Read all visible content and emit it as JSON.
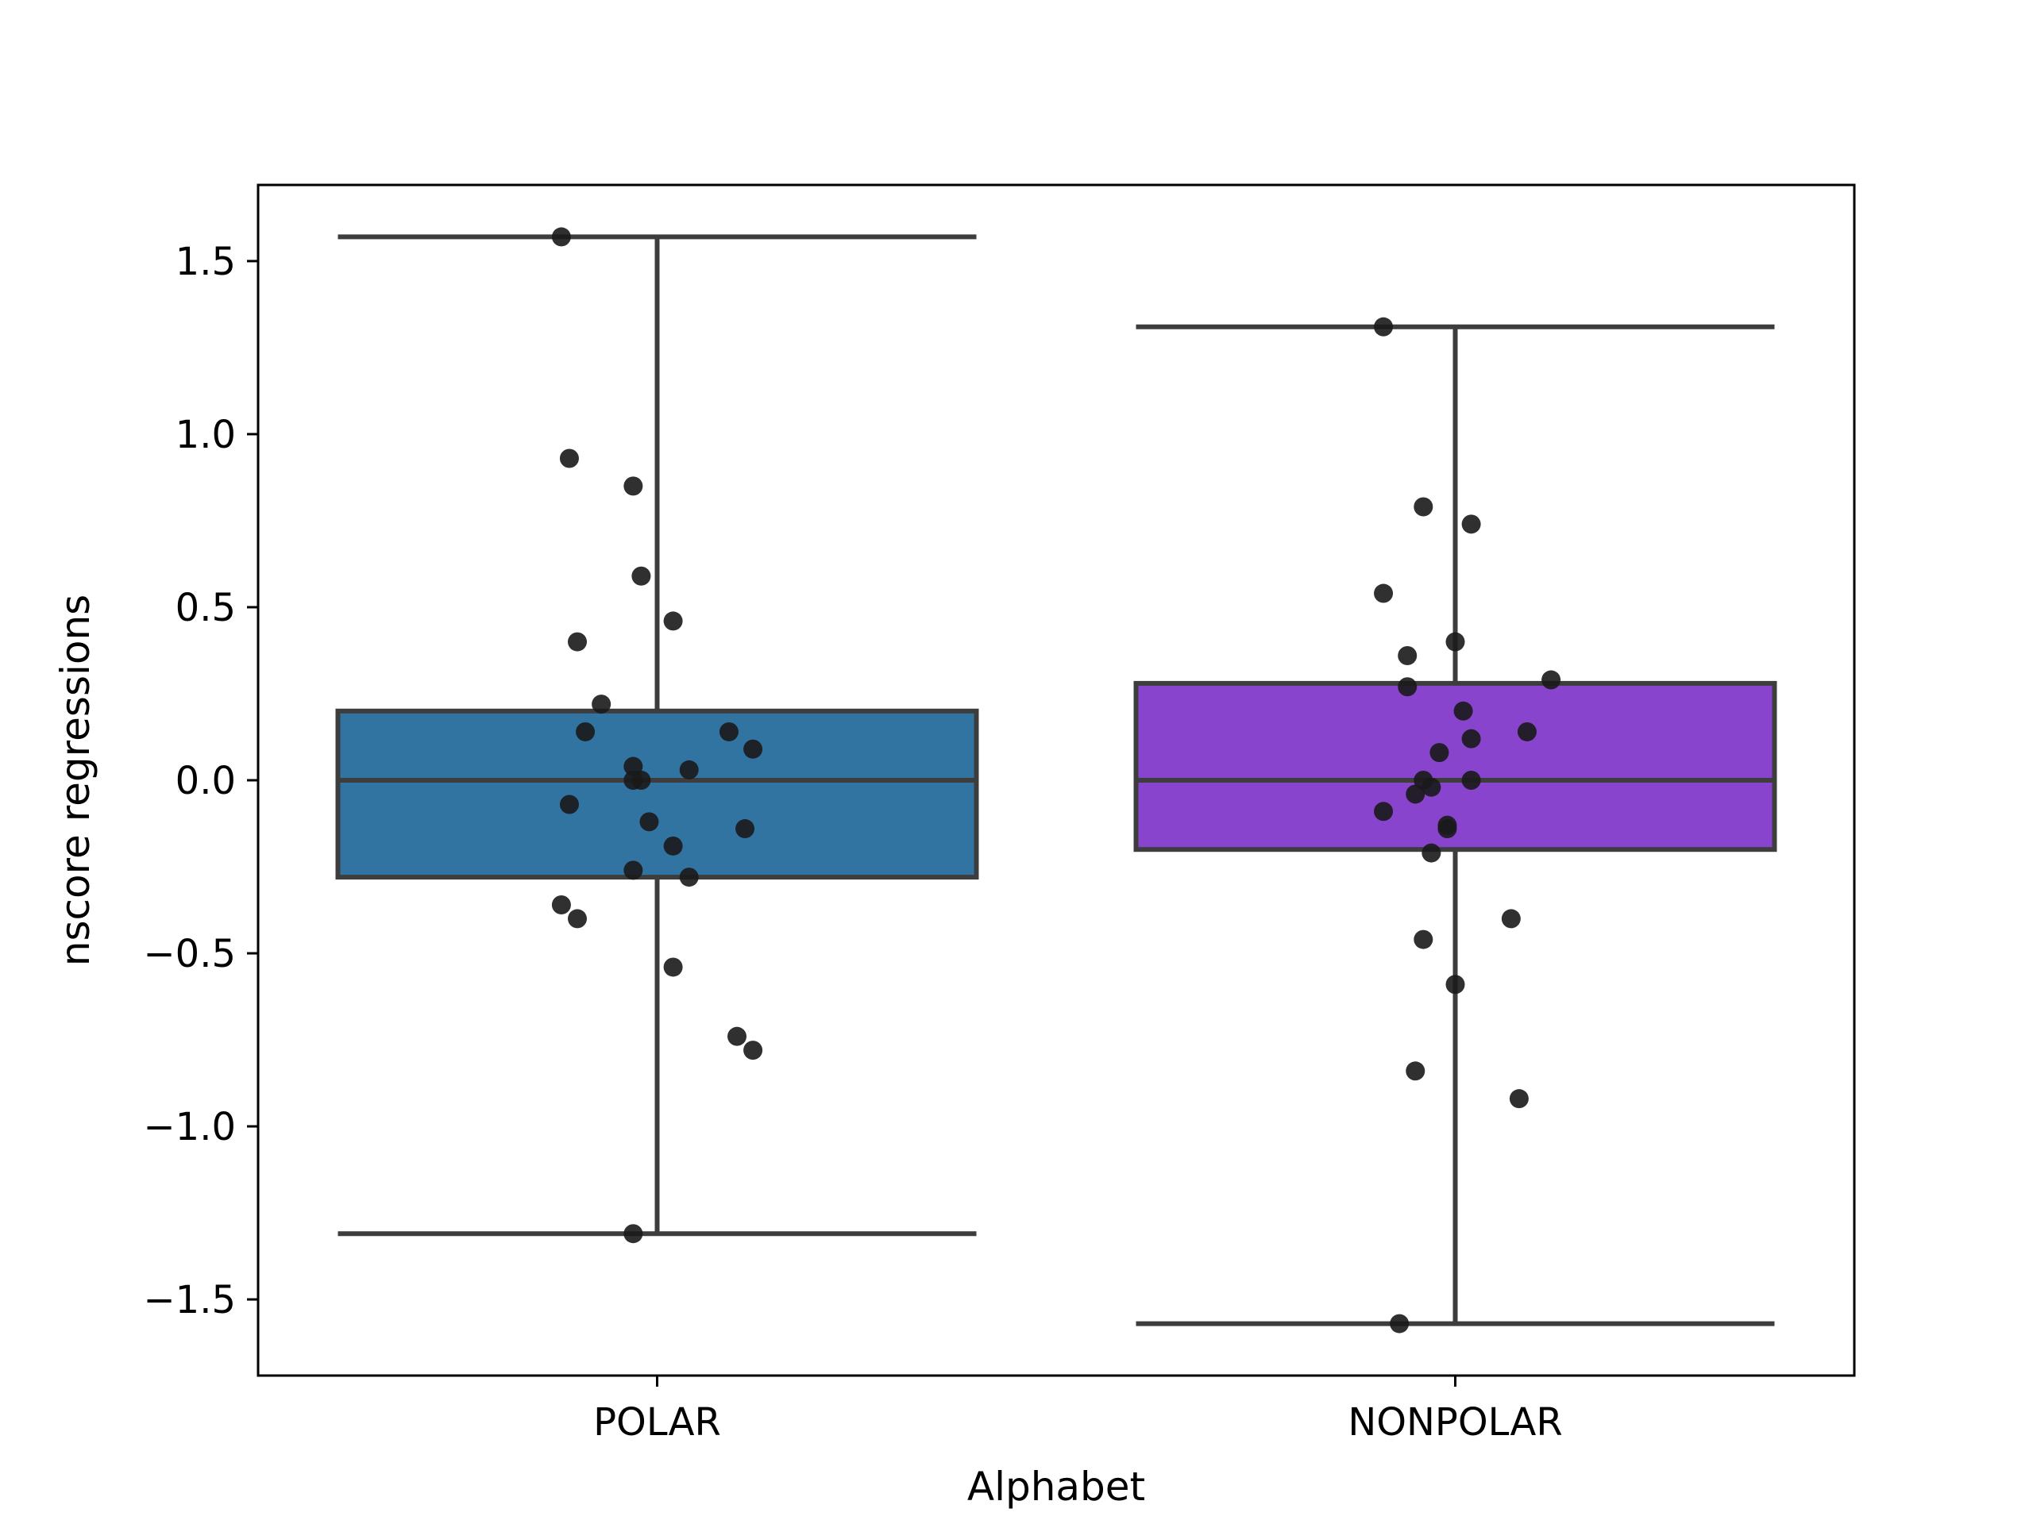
{
  "chart_data": {
    "type": "box",
    "xlabel": "Alphabet",
    "ylabel": "nscore regressions",
    "ylim": [
      -1.72,
      1.72
    ],
    "yticks": [
      {
        "value": 1.5,
        "label": "1.5"
      },
      {
        "value": 1.0,
        "label": "1.0"
      },
      {
        "value": 0.5,
        "label": "0.5"
      },
      {
        "value": 0.0,
        "label": "0.0"
      },
      {
        "value": -0.5,
        "label": "−0.5"
      },
      {
        "value": -1.0,
        "label": "−1.0"
      },
      {
        "value": -1.5,
        "label": "−1.5"
      }
    ],
    "grid": false,
    "categories": [
      "POLAR",
      "NONPOLAR"
    ],
    "boxes": [
      {
        "category": "POLAR",
        "color": "#3274a1",
        "q1": -0.28,
        "median": 0.0,
        "q3": 0.2,
        "whisker_low": -1.31,
        "whisker_high": 1.57,
        "points": [
          {
            "dx": -0.12,
            "y": 1.57
          },
          {
            "dx": -0.11,
            "y": 0.93
          },
          {
            "dx": -0.03,
            "y": 0.85
          },
          {
            "dx": -0.02,
            "y": 0.59
          },
          {
            "dx": 0.02,
            "y": 0.46
          },
          {
            "dx": -0.1,
            "y": 0.4
          },
          {
            "dx": -0.07,
            "y": 0.22
          },
          {
            "dx": -0.09,
            "y": 0.14
          },
          {
            "dx": 0.09,
            "y": 0.14
          },
          {
            "dx": 0.12,
            "y": 0.09
          },
          {
            "dx": -0.03,
            "y": 0.04
          },
          {
            "dx": 0.04,
            "y": 0.03
          },
          {
            "dx": -0.03,
            "y": 0.0
          },
          {
            "dx": -0.02,
            "y": 0.0
          },
          {
            "dx": -0.11,
            "y": -0.07
          },
          {
            "dx": -0.01,
            "y": -0.12
          },
          {
            "dx": 0.11,
            "y": -0.14
          },
          {
            "dx": 0.02,
            "y": -0.19
          },
          {
            "dx": -0.03,
            "y": -0.26
          },
          {
            "dx": 0.04,
            "y": -0.28
          },
          {
            "dx": -0.12,
            "y": -0.36
          },
          {
            "dx": -0.1,
            "y": -0.4
          },
          {
            "dx": 0.02,
            "y": -0.54
          },
          {
            "dx": 0.1,
            "y": -0.74
          },
          {
            "dx": 0.12,
            "y": -0.78
          },
          {
            "dx": -0.03,
            "y": -1.31
          }
        ]
      },
      {
        "category": "NONPOLAR",
        "color": "#8844cc",
        "q1": -0.2,
        "median": 0.0,
        "q3": 0.28,
        "whisker_low": -1.57,
        "whisker_high": 1.31,
        "points": [
          {
            "dx": -0.09,
            "y": 1.31
          },
          {
            "dx": -0.04,
            "y": 0.79
          },
          {
            "dx": 0.02,
            "y": 0.74
          },
          {
            "dx": -0.09,
            "y": 0.54
          },
          {
            "dx": -0.06,
            "y": 0.36
          },
          {
            "dx": 0.0,
            "y": 0.4
          },
          {
            "dx": -0.06,
            "y": 0.27
          },
          {
            "dx": 0.12,
            "y": 0.29
          },
          {
            "dx": 0.01,
            "y": 0.2
          },
          {
            "dx": 0.09,
            "y": 0.14
          },
          {
            "dx": 0.02,
            "y": 0.12
          },
          {
            "dx": -0.02,
            "y": 0.08
          },
          {
            "dx": -0.04,
            "y": 0.0
          },
          {
            "dx": 0.02,
            "y": 0.0
          },
          {
            "dx": -0.03,
            "y": -0.02
          },
          {
            "dx": -0.05,
            "y": -0.04
          },
          {
            "dx": -0.09,
            "y": -0.09
          },
          {
            "dx": -0.01,
            "y": -0.14
          },
          {
            "dx": -0.01,
            "y": -0.13
          },
          {
            "dx": -0.03,
            "y": -0.21
          },
          {
            "dx": 0.07,
            "y": -0.4
          },
          {
            "dx": -0.04,
            "y": -0.46
          },
          {
            "dx": 0.0,
            "y": -0.59
          },
          {
            "dx": -0.05,
            "y": -0.84
          },
          {
            "dx": 0.08,
            "y": -0.92
          },
          {
            "dx": -0.07,
            "y": -1.57
          }
        ]
      }
    ],
    "style": {
      "line_color": "#3d3d3d",
      "point_color": "#1a1a1a",
      "axis_color": "#000000"
    }
  }
}
